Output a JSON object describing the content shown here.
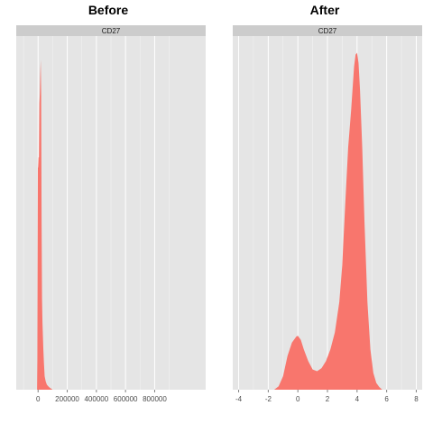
{
  "chart_data": [
    {
      "type": "area",
      "title": "Before",
      "strip_label": "CD27",
      "xlabel": "",
      "ylabel": "",
      "x_ticks": [
        0,
        200000,
        400000,
        600000,
        800000
      ],
      "x_tick_labels": [
        "0",
        "200000",
        "400000",
        "600000",
        "800000"
      ],
      "xlim": [
        -150000,
        1150000
      ],
      "ylim": [
        0,
        1.05
      ],
      "fill_color": "#F8766D",
      "series": [
        {
          "x": [
            -7000,
            -5000,
            -3000,
            -1500,
            0,
            3000,
            6000,
            9000,
            12000,
            15000,
            18000,
            21000,
            24000,
            27000,
            30000,
            33000,
            36000,
            40000,
            45000,
            52000,
            60000,
            70000,
            80000,
            90000,
            100000
          ],
          "y": [
            0,
            0.09,
            0.42,
            0.66,
            0.66,
            0.69,
            0.69,
            0.85,
            0.88,
            0.94,
            0.98,
            0.88,
            0.5,
            0.27,
            0.2,
            0.16,
            0.12,
            0.08,
            0.04,
            0.025,
            0.015,
            0.01,
            0.006,
            0.003,
            0
          ]
        }
      ]
    },
    {
      "type": "area",
      "title": "After",
      "strip_label": "CD27",
      "xlabel": "",
      "ylabel": "",
      "x_ticks": [
        -4,
        -2,
        0,
        2,
        4,
        6,
        8
      ],
      "x_tick_labels": [
        "-4",
        "-2",
        "0",
        "2",
        "4",
        "6",
        "8"
      ],
      "xlim": [
        -4.4,
        8.4
      ],
      "ylim": [
        0,
        1.05
      ],
      "fill_color": "#F8766D",
      "series": [
        {
          "x": [
            -1.6,
            -1.3,
            -1.0,
            -0.7,
            -0.4,
            -0.1,
            0.0,
            0.2,
            0.4,
            0.7,
            1.0,
            1.3,
            1.6,
            1.9,
            2.2,
            2.5,
            2.8,
            3.0,
            3.2,
            3.4,
            3.6,
            3.8,
            3.9,
            4.0,
            4.1,
            4.2,
            4.35,
            4.5,
            4.7,
            4.9,
            5.1,
            5.3,
            5.5,
            5.7
          ],
          "y": [
            0,
            0.01,
            0.04,
            0.1,
            0.14,
            0.158,
            0.16,
            0.148,
            0.12,
            0.085,
            0.06,
            0.055,
            0.064,
            0.085,
            0.12,
            0.17,
            0.26,
            0.37,
            0.55,
            0.72,
            0.83,
            0.96,
            0.995,
            1.0,
            0.97,
            0.89,
            0.72,
            0.5,
            0.26,
            0.12,
            0.05,
            0.02,
            0.008,
            0
          ]
        }
      ]
    }
  ]
}
